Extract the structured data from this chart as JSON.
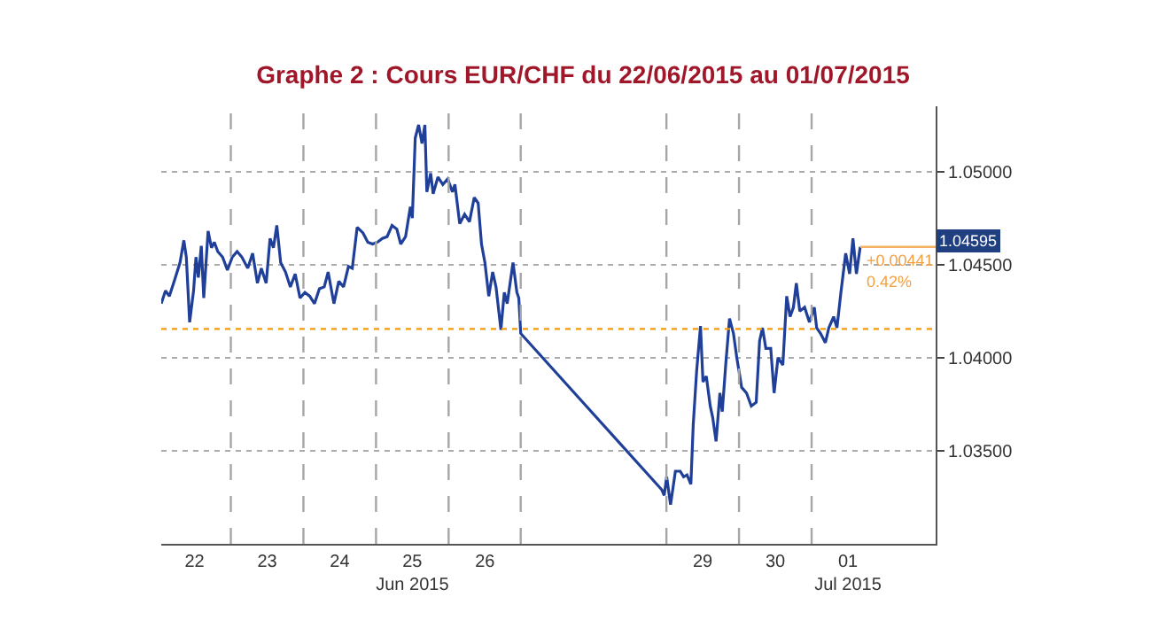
{
  "chart_data": {
    "type": "line",
    "title": "Graphe 2 : Cours EUR/CHF du 22/06/2015 au 01/07/2015",
    "x": [
      "2015-06-22T01:00",
      "2015-06-22T02:24",
      "2015-06-22T03:40",
      "2015-06-22T05:17",
      "2015-06-22T07:12",
      "2015-06-22T08:28",
      "2015-06-22T09:17",
      "2015-06-22T10:23",
      "2015-06-22T11:41",
      "2015-06-22T12:29",
      "2015-06-22T13:16",
      "2015-06-22T14:14",
      "2015-06-22T15:03",
      "2015-06-22T16:29",
      "2015-06-22T17:36",
      "2015-06-22T18:33",
      "2015-06-22T19:41",
      "2015-06-22T21:17",
      "2015-06-22T22:52",
      "2015-06-23T00:29",
      "2015-06-23T02:05",
      "2015-06-23T03:40",
      "2015-06-23T05:36",
      "2015-06-23T07:12",
      "2015-06-23T08:48",
      "2015-06-23T10:05",
      "2015-06-23T11:41",
      "2015-06-23T12:58",
      "2015-06-23T14:05",
      "2015-06-23T15:12",
      "2015-06-23T16:29",
      "2015-06-23T18:04",
      "2015-06-23T19:41",
      "2015-06-23T21:17",
      "2015-06-23T22:52",
      "2015-06-24T00:29",
      "2015-06-24T02:05",
      "2015-06-24T03:40",
      "2015-06-24T05:17",
      "2015-06-24T06:53",
      "2015-06-24T08:10",
      "2015-06-24T10:05",
      "2015-06-24T11:41",
      "2015-06-24T13:16",
      "2015-06-24T14:53",
      "2015-06-24T16:09",
      "2015-06-24T17:46",
      "2015-06-24T19:41",
      "2015-06-24T21:17",
      "2015-06-24T22:52",
      "2015-06-25T00:29",
      "2015-06-25T02:05",
      "2015-06-25T03:40",
      "2015-06-25T05:17",
      "2015-06-25T06:53",
      "2015-06-25T08:10",
      "2015-06-25T09:46",
      "2015-06-25T11:21",
      "2015-06-25T12:00",
      "2015-06-25T12:58",
      "2015-06-25T14:05",
      "2015-06-25T15:12",
      "2015-06-25T16:09",
      "2015-06-25T16:48",
      "2015-06-25T18:04",
      "2015-06-25T18:53",
      "2015-06-25T20:28",
      "2015-06-25T22:05",
      "2015-06-25T23:41",
      "2015-06-26T01:16",
      "2015-06-26T02:05",
      "2015-06-26T03:40",
      "2015-06-26T05:17",
      "2015-06-26T06:53",
      "2015-06-26T08:28",
      "2015-06-26T09:46",
      "2015-06-26T10:52",
      "2015-06-26T12:00",
      "2015-06-26T13:16",
      "2015-06-26T14:34",
      "2015-06-26T15:40",
      "2015-06-26T17:17",
      "2015-06-26T18:24",
      "2015-06-26T19:22",
      "2015-06-26T21:17",
      "2015-06-26T22:34",
      "2015-06-26T23:12",
      "2015-06-26T23:50",
      "2015-06-28T22:29",
      "2015-06-28T23:16",
      "2015-06-29T00:05",
      "2015-06-29T01:22",
      "2015-06-29T02:58",
      "2015-06-29T04:33",
      "2015-06-29T05:41",
      "2015-06-29T06:48",
      "2015-06-29T08:05",
      "2015-06-29T08:52",
      "2015-06-29T10:00",
      "2015-06-29T11:16",
      "2015-06-29T12:05",
      "2015-06-29T13:11",
      "2015-06-29T14:29",
      "2015-06-29T15:17",
      "2015-06-29T16:25",
      "2015-06-29T17:41",
      "2015-06-29T18:28",
      "2015-06-29T19:36",
      "2015-06-29T20:52",
      "2015-06-29T22:10",
      "2015-06-29T23:16",
      "2015-06-30T00:53",
      "2015-06-30T02:29",
      "2015-06-30T04:04",
      "2015-06-30T05:41",
      "2015-06-30T06:48",
      "2015-06-30T07:46",
      "2015-06-30T08:52",
      "2015-06-30T10:29",
      "2015-06-30T11:36",
      "2015-06-30T12:53",
      "2015-06-30T14:29",
      "2015-06-30T15:46",
      "2015-06-30T16:53",
      "2015-06-30T17:59",
      "2015-06-30T18:57",
      "2015-06-30T20:05",
      "2015-06-30T21:41",
      "2015-06-30T23:16",
      "2015-07-01T00:53",
      "2015-07-01T01:40",
      "2015-07-01T02:58",
      "2015-07-01T04:33",
      "2015-07-01T05:41",
      "2015-07-01T07:17",
      "2015-07-01T08:23",
      "2015-07-01T09:41",
      "2015-07-01T11:16",
      "2015-07-01T12:34",
      "2015-07-01T13:40",
      "2015-07-01T14:48",
      "2015-07-01T16:04"
    ],
    "series": [
      {
        "color": "#1f3f99",
        "values": [
          1.0429,
          1.0436,
          1.0433,
          1.0441,
          1.0451,
          1.0463,
          1.0454,
          1.0419,
          1.0436,
          1.0454,
          1.0443,
          1.046,
          1.0432,
          1.0468,
          1.0459,
          1.0462,
          1.0457,
          1.0454,
          1.0447,
          1.0454,
          1.0457,
          1.0454,
          1.0448,
          1.0456,
          1.044,
          1.0448,
          1.044,
          1.0464,
          1.0459,
          1.0471,
          1.0451,
          1.0446,
          1.0438,
          1.0445,
          1.0432,
          1.0435,
          1.0433,
          1.0429,
          1.0437,
          1.0438,
          1.0446,
          1.0429,
          1.0441,
          1.0438,
          1.0449,
          1.0448,
          1.047,
          1.0467,
          1.0462,
          1.0461,
          1.0462,
          1.0464,
          1.0465,
          1.0471,
          1.0469,
          1.0461,
          1.0465,
          1.0481,
          1.0475,
          1.0518,
          1.0525,
          1.0515,
          1.0525,
          1.0489,
          1.0499,
          1.0488,
          1.0497,
          1.0493,
          1.0496,
          1.0489,
          1.0493,
          1.0472,
          1.0477,
          1.0473,
          1.0486,
          1.0483,
          1.0461,
          1.0451,
          1.0433,
          1.0446,
          1.0438,
          1.0415,
          1.0435,
          1.0429,
          1.0451,
          1.0435,
          1.0432,
          1.0413,
          1.0329,
          1.0326,
          1.0336,
          1.0321,
          1.0339,
          1.0339,
          1.0336,
          1.0337,
          1.0332,
          1.0364,
          1.0393,
          1.0417,
          1.0387,
          1.039,
          1.0374,
          1.0368,
          1.0355,
          1.0381,
          1.0371,
          1.0396,
          1.0421,
          1.0413,
          1.04,
          1.0384,
          1.0381,
          1.0374,
          1.0376,
          1.0409,
          1.0416,
          1.0405,
          1.0405,
          1.0381,
          1.04,
          1.0396,
          1.0433,
          1.0422,
          1.0427,
          1.044,
          1.0425,
          1.0427,
          1.0419,
          1.0427,
          1.0416,
          1.0413,
          1.0408,
          1.0416,
          1.0422,
          1.0416,
          1.0435,
          1.0456,
          1.0445,
          1.0464,
          1.0445,
          1.04595
        ]
      }
    ],
    "xlim": [
      "2015-06-22T01:00",
      "2015-07-02T17:00"
    ],
    "xticks": [
      {
        "value": "2015-06-22T12:00",
        "label": "22"
      },
      {
        "value": "2015-06-23T12:00",
        "label": "23"
      },
      {
        "value": "2015-06-24T12:00",
        "label": "24"
      },
      {
        "value": "2015-06-25T12:00",
        "label": "25\nJun 2015"
      },
      {
        "value": "2015-06-26T12:00",
        "label": "26"
      },
      {
        "value": "2015-06-29T12:00",
        "label": "29"
      },
      {
        "value": "2015-06-30T12:00",
        "label": "30"
      },
      {
        "value": "2015-07-01T12:00",
        "label": "01\nJul 2015"
      }
    ],
    "ylim": [
      1.03,
      1.0535
    ],
    "yticks": [
      {
        "value": 1.035,
        "label": "1.03500"
      },
      {
        "value": 1.04,
        "label": "1.04000"
      },
      {
        "value": 1.045,
        "label": "1.04500"
      },
      {
        "value": 1.05,
        "label": "1.05000"
      }
    ],
    "grid": "y",
    "marker": "none",
    "line_style": "solid",
    "ref_lines": [
      {
        "axis": "x",
        "value": "2015-06-23T00:00",
        "color": "#a6a6a6",
        "line_style": "dashed"
      },
      {
        "axis": "x",
        "value": "2015-06-24T00:00",
        "color": "#a6a6a6",
        "line_style": "dashed"
      },
      {
        "axis": "x",
        "value": "2015-06-25T00:00",
        "color": "#a6a6a6",
        "line_style": "dashed"
      },
      {
        "axis": "x",
        "value": "2015-06-26T00:00",
        "color": "#a6a6a6",
        "line_style": "dashed"
      },
      {
        "axis": "x",
        "value": "2015-06-26T23:50",
        "color": "#a6a6a6",
        "line_style": "dashed"
      },
      {
        "axis": "x",
        "value": "2015-06-29T00:00",
        "color": "#a6a6a6",
        "line_style": "dashed"
      },
      {
        "axis": "x",
        "value": "2015-06-30T00:00",
        "color": "#a6a6a6",
        "line_style": "dashed"
      },
      {
        "axis": "x",
        "value": "2015-07-01T00:00",
        "color": "#a6a6a6",
        "line_style": "dashed"
      },
      {
        "axis": "y",
        "value": 1.04154,
        "color": "#f59a00",
        "line_style": "dotted"
      },
      {
        "axis": "y",
        "value": 1.04595,
        "label": "1.04595",
        "color": "#f5b060",
        "line_style": "solid"
      }
    ],
    "annotations": [
      "+0.00441",
      "0.42%"
    ]
  }
}
